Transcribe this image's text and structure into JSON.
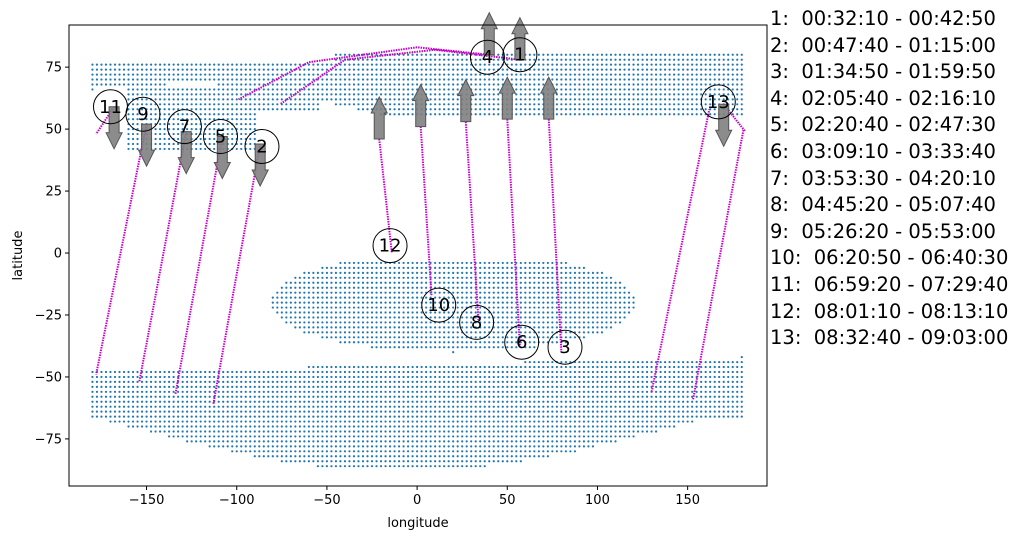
{
  "chart_data": {
    "type": "scatter",
    "title": "",
    "xlabel": "longitude",
    "ylabel": "latitude",
    "xlim": [
      -193,
      194
    ],
    "ylim": [
      -94,
      92
    ],
    "xticks": [
      -150,
      -100,
      -50,
      0,
      50,
      100,
      150
    ],
    "yticks": [
      -75,
      -50,
      -25,
      0,
      25,
      50,
      75
    ],
    "grid": false,
    "colors": {
      "grid_points": "#1f77b4",
      "track": "#c800c8",
      "arrow": "#808080",
      "circle": "#000000"
    },
    "grid_regions": [
      {
        "lon": [
          -180,
          -45
        ],
        "lat": [
          66,
          77
        ],
        "shape": "upper-left-wedge"
      },
      {
        "lon": [
          -160,
          -90
        ],
        "lat": [
          40,
          66
        ]
      },
      {
        "lon": [
          -110,
          -60
        ],
        "lat": [
          55,
          72
        ]
      },
      {
        "lon": [
          -60,
          180
        ],
        "lat": [
          56,
          80
        ]
      },
      {
        "lon": [
          -45,
          180
        ],
        "lat": [
          70,
          80
        ]
      },
      {
        "lon": [
          -80,
          170
        ],
        "lat": [
          -40,
          -4
        ],
        "shape": "central-lens"
      },
      {
        "lon": [
          -180,
          180
        ],
        "lat": [
          -88,
          -42
        ],
        "shape": "southern-wedge"
      }
    ],
    "tracks": [
      {
        "id": "1",
        "start": [
          57,
          78
        ],
        "end": [
          -76,
          60
        ],
        "via": [
          [
            10,
            82
          ],
          [
            -40,
            78
          ]
        ],
        "arrow": "up",
        "label_pos": [
          57,
          80
        ]
      },
      {
        "id": "2",
        "start": [
          -87,
          44
        ],
        "end": [
          -113,
          -61
        ],
        "arrow": "down",
        "label_pos": [
          -86,
          43
        ]
      },
      {
        "id": "3",
        "start": [
          73,
          54
        ],
        "end": [
          80,
          -40
        ],
        "arrow": "up",
        "label_pos": [
          82,
          -38
        ]
      },
      {
        "id": "4",
        "start": [
          40,
          80
        ],
        "end": [
          -99,
          62
        ],
        "via": [
          [
            0,
            83
          ],
          [
            -60,
            77
          ]
        ],
        "arrow": "up",
        "label_pos": [
          39,
          79
        ]
      },
      {
        "id": "5",
        "start": [
          -108,
          47
        ],
        "end": [
          -134,
          -57
        ],
        "arrow": "down",
        "label_pos": [
          -109,
          47
        ]
      },
      {
        "id": "6",
        "start": [
          50,
          54
        ],
        "end": [
          57,
          -38
        ],
        "arrow": "up",
        "label_pos": [
          58,
          -36
        ]
      },
      {
        "id": "7",
        "start": [
          -128,
          49
        ],
        "end": [
          -154,
          -52
        ],
        "arrow": "down",
        "label_pos": [
          -129,
          51
        ]
      },
      {
        "id": "8",
        "start": [
          27,
          53
        ],
        "end": [
          34,
          -27
        ],
        "arrow": "up",
        "label_pos": [
          33,
          -28
        ]
      },
      {
        "id": "9",
        "start": [
          -150,
          52
        ],
        "end": [
          -178,
          -49
        ],
        "arrow": "down",
        "label_pos": [
          -152,
          56
        ]
      },
      {
        "id": "10",
        "start": [
          2,
          51
        ],
        "end": [
          8,
          -17
        ],
        "arrow": "up",
        "label_pos": [
          12,
          -21
        ]
      },
      {
        "id": "11",
        "start": [
          -168,
          59
        ],
        "end": [
          -178,
          48
        ],
        "arrow": "down",
        "label_pos": [
          -170,
          59
        ]
      },
      {
        "id": "12",
        "start": [
          -21,
          46
        ],
        "end": [
          -14,
          0
        ],
        "arrow": "up",
        "label_pos": [
          -15,
          3
        ]
      },
      {
        "id": "13",
        "start": [
          170,
          60
        ],
        "end": [
          182,
          49
        ],
        "extra_segments": [
          [
            [
              153,
              -59
            ],
            [
              181,
              50
            ]
          ],
          [
            [
              130,
              -56
            ],
            [
              162,
              58
            ]
          ]
        ],
        "arrow": "down",
        "label_pos": [
          167,
          61
        ]
      }
    ],
    "legend": [
      "1:  00:32:10 - 00:42:50",
      "2:  00:47:40 - 01:15:00",
      "3:  01:34:50 - 01:59:50",
      "4:  02:05:40 - 02:16:10",
      "5:  02:20:40 - 02:47:30",
      "6:  03:09:10 - 03:33:40",
      "7:  03:53:30 - 04:20:10",
      "8:  04:45:20 - 05:07:40",
      "9:  05:26:20 - 05:53:00",
      "10:  06:20:50 - 06:40:30",
      "11:  06:59:20 - 07:29:40",
      "12:  08:01:10 - 08:13:10",
      "13:  08:32:40 - 09:03:00"
    ]
  }
}
